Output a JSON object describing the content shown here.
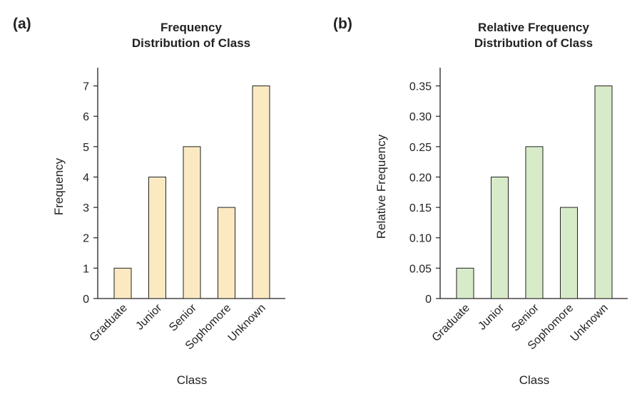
{
  "chart_data": [
    {
      "type": "bar",
      "panel_label": "(a)",
      "title_lines": [
        "Frequency",
        "Distribution of Class"
      ],
      "title": "Frequency Distribution of Class",
      "xlabel": "Class",
      "ylabel": "Frequency",
      "categories": [
        "Graduate",
        "Junior",
        "Senior",
        "Sophomore",
        "Unknown"
      ],
      "values": [
        1,
        4,
        5,
        3,
        7
      ],
      "yticks": [
        "0",
        "1",
        "2",
        "3",
        "4",
        "5",
        "6",
        "7"
      ],
      "ylim": [
        0,
        7.6
      ],
      "bar_color": "#fbe9c2",
      "grid": false
    },
    {
      "type": "bar",
      "panel_label": "(b)",
      "title_lines": [
        "Relative Frequency",
        "Distribution of Class"
      ],
      "title": "Relative Frequency Distribution of Class",
      "xlabel": "Class",
      "ylabel": "Relative Frequency",
      "categories": [
        "Graduate",
        "Junior",
        "Senior",
        "Sophomore",
        "Unknown"
      ],
      "values": [
        0.05,
        0.2,
        0.25,
        0.15,
        0.35
      ],
      "yticks": [
        "0",
        "0.05",
        "0.10",
        "0.15",
        "0.20",
        "0.25",
        "0.30",
        "0.35"
      ],
      "ylim": [
        0,
        0.38
      ],
      "bar_color": "#d8ebc8",
      "grid": false
    }
  ]
}
